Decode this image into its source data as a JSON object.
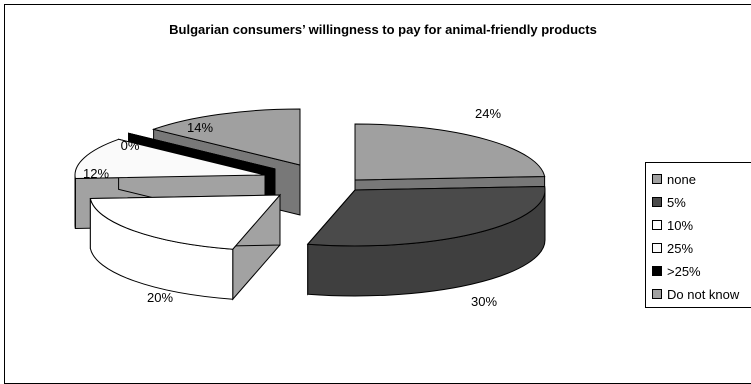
{
  "chart_data": {
    "type": "pie",
    "title": "Bulgarian consumers’ willingness to pay for animal-friendly products",
    "categories": [
      "none",
      "5%",
      "10%",
      "25%",
      ">25%",
      "Do not know"
    ],
    "values": [
      24,
      30,
      20,
      12,
      0,
      14
    ],
    "data_labels": [
      "24%",
      "30%",
      "20%",
      "12%",
      "0%",
      "14%"
    ],
    "colors": [
      "#a0a0a0",
      "#4a4a4a",
      "#ffffff",
      "#fafafa",
      "#000000",
      "#a0a0a0"
    ],
    "legend_position": "right",
    "style": "3d-exploded"
  }
}
